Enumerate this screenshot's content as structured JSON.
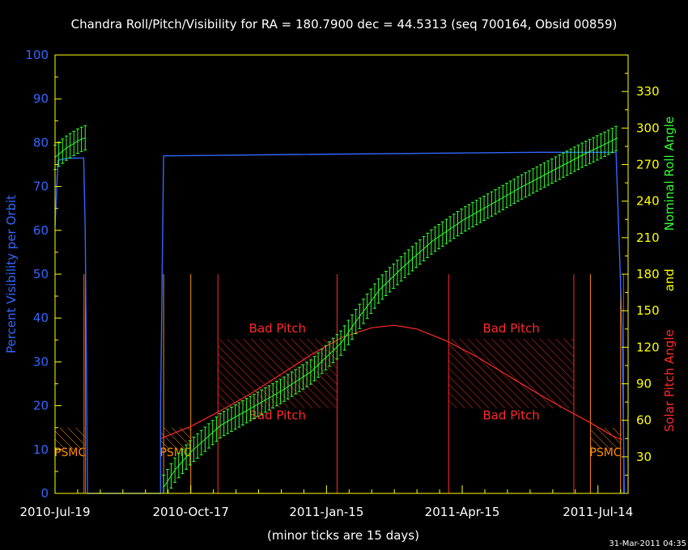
{
  "chart_data": {
    "type": "line",
    "title": "Chandra Roll/Pitch/Visibility for RA = 180.7900 dec = 44.5313 (seq 700164, Obsid 00859)",
    "xlabel": "(minor ticks are 15 days)",
    "ylabel_left": "Percent Visibility per Orbit",
    "ylabel_right_parts": [
      {
        "text": "Solar Pitch Angle",
        "color": "#ff2a2a"
      },
      {
        "text": "and",
        "color": "#ffff00"
      },
      {
        "text": "Nominal Roll Angle",
        "color": "#33ff33"
      }
    ],
    "timestamp": "31-Mar-2011 04:35",
    "x_axis": {
      "unit": "days since 2010-Jul-19",
      "range": [
        0,
        380
      ],
      "major_ticks": [
        {
          "value": 0,
          "label": "2010-Jul-19"
        },
        {
          "value": 90,
          "label": "2010-Oct-17"
        },
        {
          "value": 180,
          "label": "2011-Jan-15"
        },
        {
          "value": 270,
          "label": "2011-Apr-15"
        },
        {
          "value": 360,
          "label": "2011-Jul-14"
        }
      ],
      "minor_step": 15
    },
    "y_left": {
      "range": [
        0,
        100
      ],
      "ticks": [
        0,
        10,
        20,
        30,
        40,
        50,
        60,
        70,
        80,
        90,
        100
      ]
    },
    "y_right": {
      "range": [
        0,
        360
      ],
      "ticks": [
        30,
        60,
        90,
        120,
        150,
        180,
        210,
        240,
        270,
        300,
        330
      ]
    },
    "colors": {
      "axes": "#ffff00",
      "visibility": "#3366ff",
      "roll": "#33ff33",
      "pitch": "#ff2a2a",
      "psmc": "#ff8c00",
      "bad_pitch": "#ff2a2a"
    },
    "visibility_series": {
      "name": "Percent Visibility per Orbit",
      "points": [
        [
          0,
          61
        ],
        [
          2,
          76
        ],
        [
          9,
          76.5
        ],
        [
          19,
          76.5
        ],
        [
          20,
          60
        ],
        [
          21.5,
          0
        ],
        [
          70,
          0
        ],
        [
          70,
          20
        ],
        [
          72,
          77
        ],
        [
          160,
          77.3
        ],
        [
          320,
          77.8
        ],
        [
          372,
          77.8
        ],
        [
          376,
          38
        ],
        [
          377.5,
          0
        ]
      ]
    },
    "pitch_series": {
      "name": "Solar Pitch Angle",
      "points": [
        [
          70,
          45
        ],
        [
          90,
          55
        ],
        [
          110,
          68
        ],
        [
          130,
          82
        ],
        [
          150,
          98
        ],
        [
          170,
          114
        ],
        [
          190,
          128
        ],
        [
          210,
          136
        ],
        [
          225,
          138
        ],
        [
          240,
          135
        ],
        [
          260,
          125
        ],
        [
          280,
          112
        ],
        [
          300,
          97
        ],
        [
          320,
          82
        ],
        [
          340,
          68
        ],
        [
          355,
          58
        ],
        [
          370,
          47
        ],
        [
          376,
          44
        ]
      ]
    },
    "roll_series": {
      "name": "Nominal Roll Angle",
      "err_halfwidth": 10,
      "segments": [
        {
          "points": [
            [
              0,
              276
            ],
            [
              4,
              280
            ],
            [
              8,
              284
            ],
            [
              12,
              287
            ],
            [
              16,
              290
            ],
            [
              20,
              292
            ]
          ]
        },
        {
          "points": [
            [
              72,
              5
            ],
            [
              80,
              20
            ],
            [
              90,
              34
            ],
            [
              110,
              56
            ],
            [
              130,
              70
            ],
            [
              150,
              84
            ],
            [
              170,
              100
            ],
            [
              190,
              124
            ],
            [
              200,
              142
            ],
            [
              215,
              167
            ],
            [
              230,
              185
            ],
            [
              250,
              207
            ],
            [
              270,
              224
            ],
            [
              290,
              238
            ],
            [
              310,
              252
            ],
            [
              330,
              265
            ],
            [
              350,
              278
            ],
            [
              365,
              287
            ],
            [
              373,
              292
            ]
          ]
        }
      ]
    },
    "psmc_regions": [
      {
        "label": "PSMC",
        "x": [
          0,
          20
        ],
        "y": [
          10,
          15
        ]
      },
      {
        "label": "PSMC",
        "x": [
          70,
          90
        ],
        "y": [
          10,
          15
        ]
      },
      {
        "label": "PSMC",
        "x": [
          355,
          375
        ],
        "y": [
          10,
          15
        ]
      }
    ],
    "bad_pitch_regions": [
      {
        "label": "Bad Pitch",
        "x": [
          108,
          187
        ],
        "pitch": [
          70,
          127
        ]
      },
      {
        "label": "Bad Pitch",
        "x": [
          261,
          344
        ],
        "pitch": [
          70,
          127
        ]
      }
    ],
    "red_vlines": [
      19,
      108,
      187,
      261,
      344,
      377
    ],
    "orange_vlines": [
      0,
      20,
      72,
      90,
      355,
      375
    ],
    "psmc_label": "PSMC",
    "bad_pitch_label": "Bad Pitch"
  }
}
